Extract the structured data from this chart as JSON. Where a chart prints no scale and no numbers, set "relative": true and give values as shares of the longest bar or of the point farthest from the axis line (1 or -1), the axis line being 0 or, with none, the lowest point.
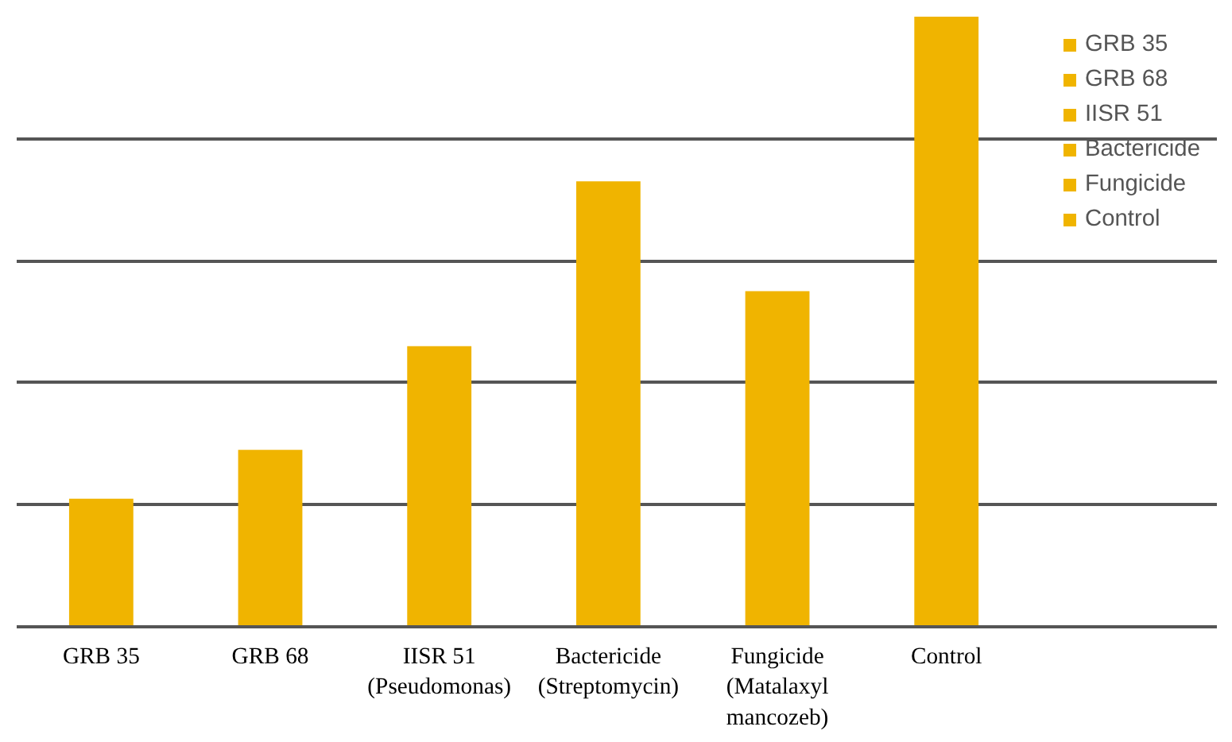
{
  "chart_data": {
    "type": "bar",
    "relative": true,
    "grid": "y",
    "legend": "right",
    "categories": [
      "GRB 35",
      "GRB 68",
      "IISR 51\n(Pseudomonas)",
      "Bactericide\n(Streptomycin)",
      "Fungicide\n(Matalaxyl\nmancozeb)",
      "Control"
    ],
    "series": [
      {
        "name": "GRB 35",
        "color": "#f0b400",
        "values": [
          0.21,
          null,
          null,
          null,
          null,
          null
        ]
      },
      {
        "name": "GRB 68",
        "color": "#f0b400",
        "values": [
          null,
          0.29,
          null,
          null,
          null,
          null
        ]
      },
      {
        "name": "IISR 51",
        "color": "#f0b400",
        "values": [
          null,
          null,
          0.46,
          null,
          null,
          null
        ]
      },
      {
        "name": "Bactericide",
        "color": "#f0b400",
        "values": [
          null,
          null,
          null,
          0.73,
          null,
          null
        ]
      },
      {
        "name": "Fungicide",
        "color": "#f0b400",
        "values": [
          null,
          null,
          null,
          null,
          0.55,
          null
        ]
      },
      {
        "name": "Control",
        "color": "#f0b400",
        "values": [
          null,
          null,
          null,
          null,
          null,
          1.0
        ]
      }
    ]
  }
}
